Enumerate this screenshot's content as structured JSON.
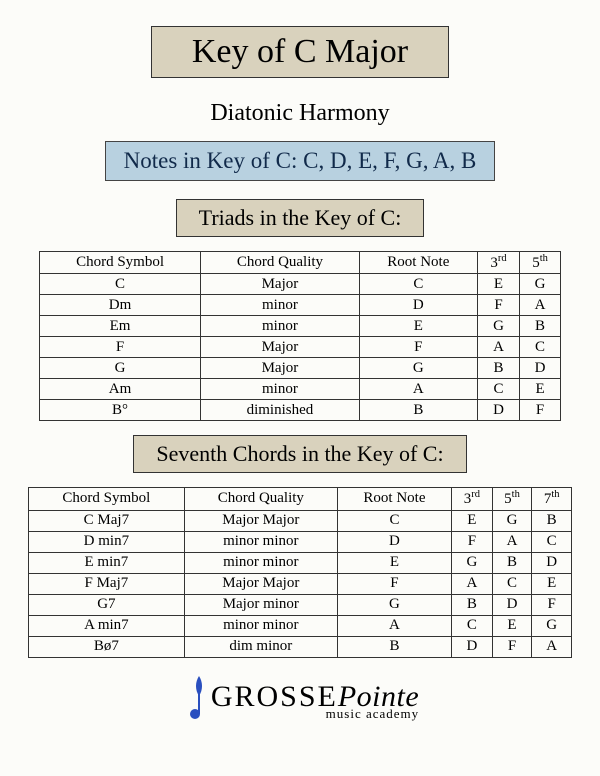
{
  "title": "Key of C Major",
  "subtitle": "Diatonic Harmony",
  "notes_label": "Notes in Key of C: C, D, E, F, G, A, B",
  "triads_section": "Triads in the Key of C:",
  "sevenths_section": "Seventh Chords in the Key of C:",
  "triads_table": {
    "headers": [
      "Chord Symbol",
      "Chord Quality",
      "Root Note",
      "3rd",
      "5th"
    ],
    "rows": [
      [
        "C",
        "Major",
        "C",
        "E",
        "G"
      ],
      [
        "Dm",
        "minor",
        "D",
        "F",
        "A"
      ],
      [
        "Em",
        "minor",
        "E",
        "G",
        "B"
      ],
      [
        "F",
        "Major",
        "F",
        "A",
        "C"
      ],
      [
        "G",
        "Major",
        "G",
        "B",
        "D"
      ],
      [
        "Am",
        "minor",
        "A",
        "C",
        "E"
      ],
      [
        "B°",
        "diminished",
        "B",
        "D",
        "F"
      ]
    ]
  },
  "sevenths_table": {
    "headers": [
      "Chord Symbol",
      "Chord Quality",
      "Root Note",
      "3rd",
      "5th",
      "7th"
    ],
    "rows": [
      [
        "C Maj7",
        "Major Major",
        "C",
        "E",
        "G",
        "B"
      ],
      [
        "D min7",
        "minor minor",
        "D",
        "F",
        "A",
        "C"
      ],
      [
        "E min7",
        "minor minor",
        "E",
        "G",
        "B",
        "D"
      ],
      [
        "F Maj7",
        "Major Major",
        "F",
        "A",
        "C",
        "E"
      ],
      [
        "G7",
        "Major minor",
        "G",
        "B",
        "D",
        "F"
      ],
      [
        "A min7",
        "minor minor",
        "A",
        "C",
        "E",
        "G"
      ],
      [
        "Bø7",
        "dim minor",
        "B",
        "D",
        "F",
        "A"
      ]
    ]
  },
  "logo": {
    "line1a": "GROSSE",
    "line1b": "Pointe",
    "line2": "music academy"
  },
  "colors": {
    "tan": "#d9d2bd",
    "blue": "#b8d1e0",
    "border": "#333333",
    "page": "#fcfcf9"
  }
}
